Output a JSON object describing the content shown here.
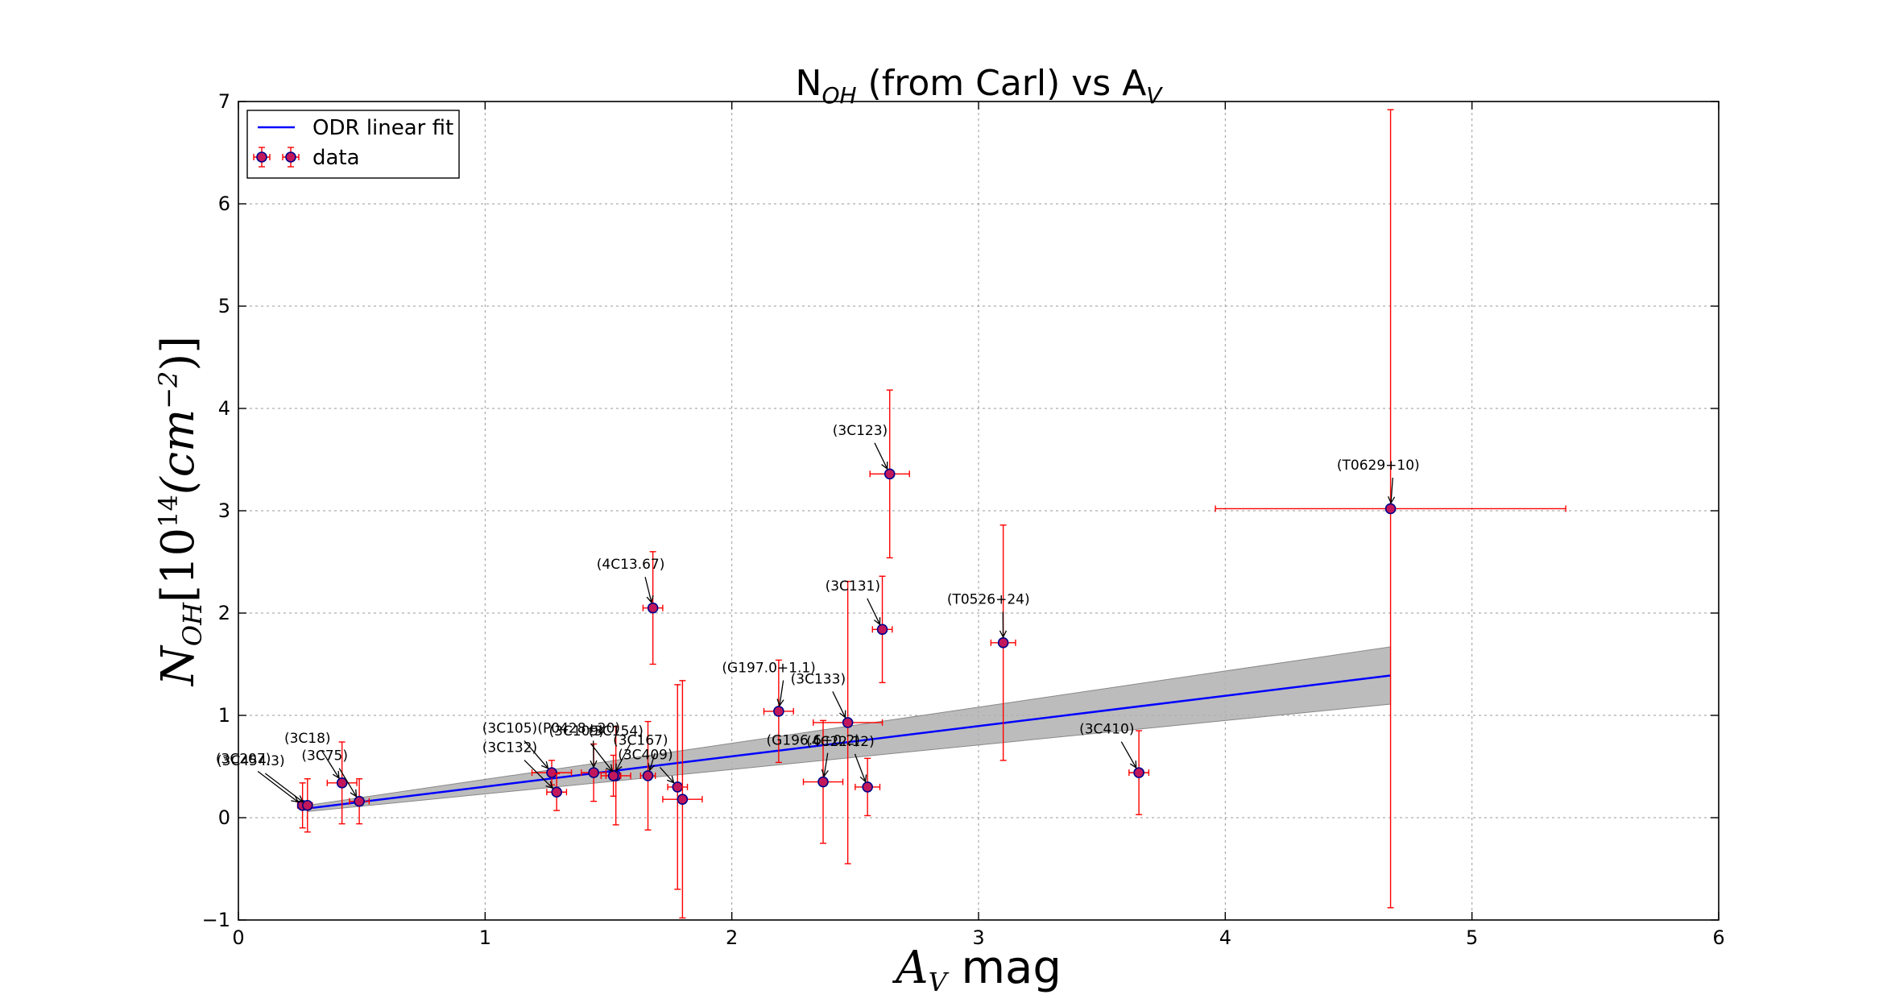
{
  "chart_data": {
    "type": "scatter",
    "title": {
      "main": "N",
      "sub1": "OH",
      "mid": " (from Carl) vs A",
      "sub2": "V"
    },
    "xlabel": {
      "main": "A",
      "sub": "V",
      "rest": " mag"
    },
    "ylabel": {
      "main": "N",
      "sub": "OH",
      "rest": "[10",
      "sup": "14",
      "unit": "(cm",
      "unitsup": "−2",
      "close": ")]"
    },
    "xlim": [
      0,
      6
    ],
    "ylim": [
      -1,
      7
    ],
    "xticks": [
      0,
      1,
      2,
      3,
      4,
      5,
      6
    ],
    "yticks": [
      -1,
      0,
      1,
      2,
      3,
      4,
      5,
      6,
      7
    ],
    "xtick_labels": [
      "0",
      "1",
      "2",
      "3",
      "4",
      "5",
      "6"
    ],
    "ytick_labels": [
      "−1",
      "0",
      "1",
      "2",
      "3",
      "4",
      "5",
      "6",
      "7"
    ],
    "grid": true,
    "legend_position": "top-left",
    "legend": [
      {
        "label": "ODR linear fit",
        "kind": "line"
      },
      {
        "label": "data",
        "kind": "errorbar"
      }
    ],
    "colors": {
      "fit": "#0000ff",
      "band": "#b0b0b0",
      "errorbar": "#ff0000",
      "marker_face": "#c2185b",
      "marker_edge": "#00008b",
      "grid": "#999999"
    },
    "fit": {
      "x": [
        0.28,
        4.67
      ],
      "y": [
        0.09,
        1.39
      ],
      "band_upper": [
        0.12,
        1.67
      ],
      "band_lower": [
        0.06,
        1.11
      ]
    },
    "points": [
      {
        "label": "(3C207)",
        "x": 0.26,
        "y": 0.12,
        "xerr": 0.02,
        "yerr": 0.22,
        "lx": 0.02,
        "ly": 0.5
      },
      {
        "label": "(3C454.3)",
        "x": 0.28,
        "y": 0.12,
        "xerr": 0.02,
        "yerr": 0.26,
        "lx": 0.05,
        "ly": 0.48
      },
      {
        "label": "(3C18)",
        "x": 0.42,
        "y": 0.34,
        "xerr": 0.06,
        "yerr": 0.4,
        "lx": 0.28,
        "ly": 0.7
      },
      {
        "label": "(3C75)",
        "x": 0.49,
        "y": 0.16,
        "xerr": 0.04,
        "yerr": 0.22,
        "lx": 0.35,
        "ly": 0.53
      },
      {
        "label": "(3C105)",
        "x": 1.27,
        "y": 0.44,
        "xerr": 0.08,
        "yerr": 0.12,
        "lx": 1.1,
        "ly": 0.8
      },
      {
        "label": "(3C132)",
        "x": 1.29,
        "y": 0.25,
        "xerr": 0.04,
        "yerr": 0.18,
        "lx": 1.1,
        "ly": 0.61
      },
      {
        "label": "(P0428+20)",
        "x": 1.44,
        "y": 0.44,
        "xerr": 0.05,
        "yerr": 0.28,
        "lx": 1.38,
        "ly": 0.8
      },
      {
        "label": "(3C109)",
        "x": 1.53,
        "y": 0.41,
        "xerr": 0.06,
        "yerr": 0.48,
        "lx": 1.37,
        "ly": 0.77
      },
      {
        "label": "(3C154)",
        "x": 1.52,
        "y": 0.41,
        "xerr": 0.03,
        "yerr": 0.2,
        "lx": 1.53,
        "ly": 0.77
      },
      {
        "label": "(3C167)",
        "x": 1.66,
        "y": 0.41,
        "xerr": 0.03,
        "yerr": 0.53,
        "lx": 1.63,
        "ly": 0.68
      },
      {
        "label": "(3C409)",
        "x": 1.78,
        "y": 0.3,
        "xerr": 0.04,
        "yerr": 1.0,
        "lx": 1.65,
        "ly": 0.54
      },
      {
        "label": "",
        "x": 1.8,
        "y": 0.18,
        "xerr": 0.08,
        "yerr": 1.16,
        "lx": 1.8,
        "ly": 0.18
      },
      {
        "label": "(4C13.67)",
        "x": 1.68,
        "y": 2.05,
        "xerr": 0.04,
        "yerr": 0.55,
        "lx": 1.59,
        "ly": 2.4
      },
      {
        "label": "(G197.0+1.1)",
        "x": 2.19,
        "y": 1.04,
        "xerr": 0.06,
        "yerr": 0.5,
        "lx": 2.15,
        "ly": 1.39
      },
      {
        "label": "(3C133)",
        "x": 2.47,
        "y": 0.93,
        "xerr": 0.14,
        "yerr": 1.38,
        "lx": 2.35,
        "ly": 1.28
      },
      {
        "label": "(G196.6+0.2)",
        "x": 2.37,
        "y": 0.35,
        "xerr": 0.08,
        "yerr": 0.6,
        "lx": 2.33,
        "ly": 0.68
      },
      {
        "label": "(4C22.12)",
        "x": 2.55,
        "y": 0.3,
        "xerr": 0.05,
        "yerr": 0.28,
        "lx": 2.44,
        "ly": 0.67
      },
      {
        "label": "(3C131)",
        "x": 2.61,
        "y": 1.84,
        "xerr": 0.04,
        "yerr": 0.52,
        "lx": 2.49,
        "ly": 2.19
      },
      {
        "label": "(3C123)",
        "x": 2.64,
        "y": 3.36,
        "xerr": 0.08,
        "yerr": 0.82,
        "lx": 2.52,
        "ly": 3.71
      },
      {
        "label": "(T0526+24)",
        "x": 3.1,
        "y": 1.71,
        "xerr": 0.05,
        "yerr": 1.15,
        "lx": 3.04,
        "ly": 2.06
      },
      {
        "label": "(3C410)",
        "x": 3.65,
        "y": 0.44,
        "xerr": 0.04,
        "yerr": 0.41,
        "lx": 3.52,
        "ly": 0.79
      },
      {
        "label": "(T0629+10)",
        "x": 4.67,
        "y": 3.02,
        "xerr": 0.71,
        "yerr": 3.9,
        "lx": 4.62,
        "ly": 3.37
      }
    ]
  }
}
